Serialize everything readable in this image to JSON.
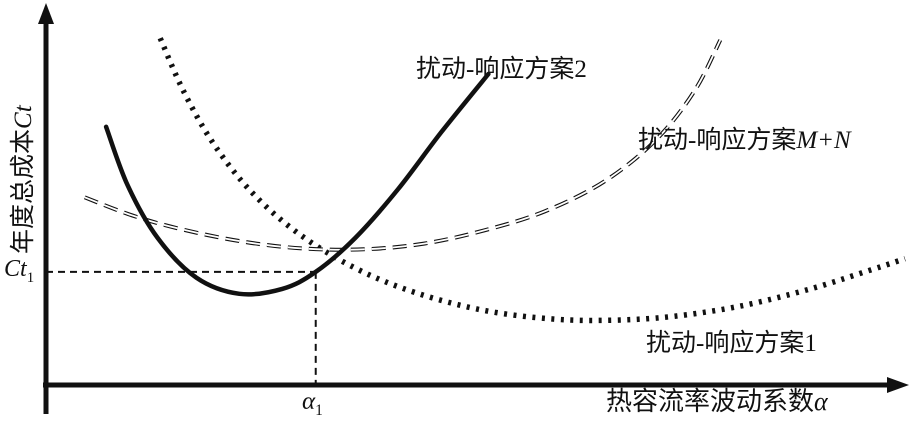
{
  "chart_data": {
    "type": "line",
    "title": "",
    "xlabel": {
      "text": "热容流率波动系数",
      "symbol": "α"
    },
    "ylabel": {
      "text": "年度总成本",
      "symbol": "Ct"
    },
    "axis_range": {
      "x": [
        0,
        10
      ],
      "y": [
        0,
        10
      ]
    },
    "grid": false,
    "legend": "none (inline curve labels)",
    "ink_color": "#111111",
    "series": [
      {
        "id": "plan2",
        "name": "扰动-响应方案2",
        "style": "solid-thick",
        "points": [
          [
            0.7,
            6.85
          ],
          [
            0.95,
            5.3
          ],
          [
            1.3,
            3.9
          ],
          [
            1.75,
            2.85
          ],
          [
            2.25,
            2.42
          ],
          [
            2.75,
            2.55
          ],
          [
            3.14,
            3.0
          ],
          [
            3.6,
            3.9
          ],
          [
            4.1,
            5.2
          ],
          [
            4.6,
            6.7
          ],
          [
            5.15,
            8.25
          ]
        ]
      },
      {
        "id": "planMN",
        "name": "扰动-响应方案M+N",
        "name_prefix": "扰动-响应方案",
        "name_symbol": "M+N",
        "style": "dashed-hollow",
        "points": [
          [
            0.45,
            4.98
          ],
          [
            1.0,
            4.5
          ],
          [
            1.6,
            4.12
          ],
          [
            2.3,
            3.8
          ],
          [
            3.0,
            3.62
          ],
          [
            3.7,
            3.6
          ],
          [
            4.4,
            3.75
          ],
          [
            5.1,
            4.1
          ],
          [
            5.8,
            4.6
          ],
          [
            6.5,
            5.4
          ],
          [
            7.1,
            6.5
          ],
          [
            7.55,
            7.8
          ],
          [
            7.85,
            9.15
          ]
        ]
      },
      {
        "id": "plan1",
        "name": "扰动-响应方案1",
        "style": "dotted-thick",
        "points": [
          [
            1.33,
            9.2
          ],
          [
            1.6,
            7.8
          ],
          [
            1.95,
            6.4
          ],
          [
            2.4,
            5.1
          ],
          [
            2.95,
            4.0
          ],
          [
            3.6,
            3.1
          ],
          [
            4.3,
            2.45
          ],
          [
            5.1,
            1.98
          ],
          [
            5.9,
            1.75
          ],
          [
            6.6,
            1.72
          ],
          [
            7.3,
            1.82
          ],
          [
            8.1,
            2.1
          ],
          [
            8.9,
            2.55
          ],
          [
            9.6,
            3.05
          ],
          [
            10.0,
            3.35
          ]
        ]
      }
    ],
    "annotations": {
      "ct1": {
        "label": "Ct",
        "sub": "1",
        "y": 3.0,
        "meaning": "annual total cost of plan 2 at α1"
      },
      "alpha1": {
        "label": "α",
        "sub": "1",
        "x": 3.14,
        "meaning": "fluctuation coefficient at marked point"
      }
    }
  }
}
